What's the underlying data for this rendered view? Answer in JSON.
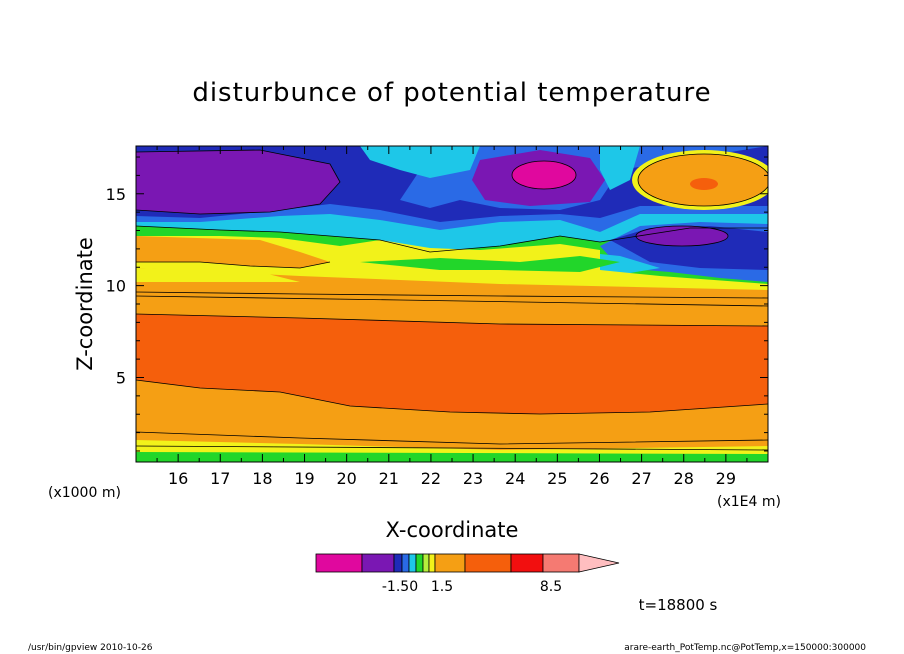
{
  "chart_data": {
    "type": "contour",
    "title": "disturbunce of potential temperature",
    "xlabel": "X-coordinate",
    "ylabel": "Z-coordinate",
    "x_unit": "(x1E4 m)",
    "y_unit": "(x1000 m)",
    "xlim": [
      15.0,
      30.0
    ],
    "ylim": [
      0.4,
      17.6
    ],
    "x_ticks": [
      "16",
      "17",
      "18",
      "19",
      "20",
      "21",
      "22",
      "23",
      "24",
      "25",
      "26",
      "27",
      "28",
      "29"
    ],
    "y_ticks": [
      "5",
      "10",
      "15"
    ],
    "colorbar": {
      "colors": [
        "#e0089e",
        "#7a17b3",
        "#1f2bb8",
        "#2a6ae6",
        "#1ec7e8",
        "#22d62a",
        "#b6ef3c",
        "#f2f21a",
        "#f59f14",
        "#f55f0c",
        "#f20f0f",
        "#f57a72",
        "#ffbec0"
      ],
      "labels": [
        "-1.50",
        "1.5",
        "8.5"
      ]
    },
    "time_label": "t=18800 s"
  },
  "footer": {
    "left": "/usr/bin/gpview   2010-10-26",
    "right": "arare-earth_PotTemp.nc@PotTemp,x=150000:300000"
  }
}
